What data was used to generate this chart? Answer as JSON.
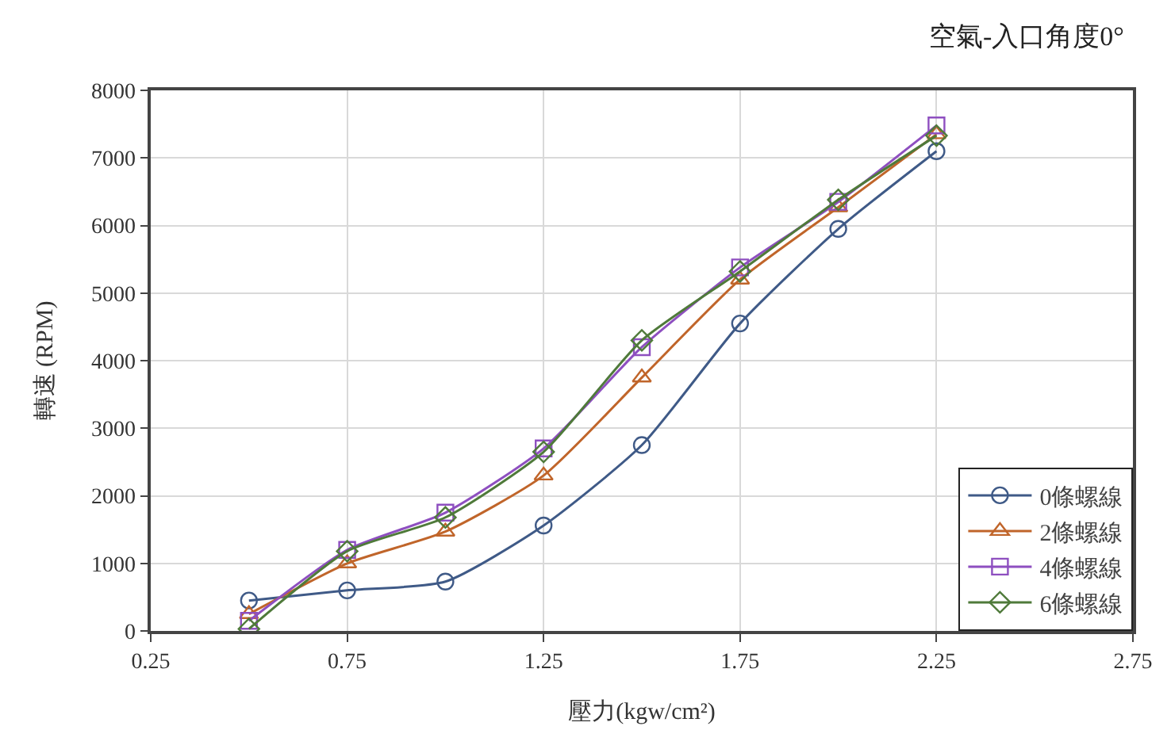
{
  "chart_data": {
    "type": "line",
    "title": "空氣-入口角度0°",
    "xlabel": "壓力(kgw/cm²)",
    "ylabel": "轉速 (RPM)",
    "x": [
      0.5,
      0.75,
      1,
      1.25,
      1.5,
      1.75,
      2,
      2.25
    ],
    "series": [
      {
        "name": "0條螺線",
        "color": "#3f5a87",
        "marker": "circle",
        "values": [
          450,
          600,
          730,
          1560,
          2750,
          4550,
          5950,
          7100
        ]
      },
      {
        "name": "2條螺線",
        "color": "#c0652a",
        "marker": "triangle",
        "values": [
          250,
          1000,
          1470,
          2300,
          3750,
          5200,
          6270,
          7350
        ]
      },
      {
        "name": "4條螺線",
        "color": "#8e4fc0",
        "marker": "square",
        "values": [
          150,
          1200,
          1750,
          2700,
          4200,
          5380,
          6350,
          7480
        ]
      },
      {
        "name": "6條螺線",
        "color": "#4f7a3a",
        "marker": "diamond",
        "values": [
          30,
          1180,
          1680,
          2650,
          4300,
          5320,
          6380,
          7330
        ]
      }
    ],
    "xlim": [
      0.25,
      2.75
    ],
    "xticks": [
      0.25,
      0.75,
      1.25,
      1.75,
      2.25,
      2.75
    ],
    "ylim": [
      0,
      8000
    ],
    "yticks": [
      0,
      1000,
      2000,
      3000,
      4000,
      5000,
      6000,
      7000,
      8000
    ],
    "grid": true,
    "legend": "bottom right",
    "line_style": "solid"
  }
}
